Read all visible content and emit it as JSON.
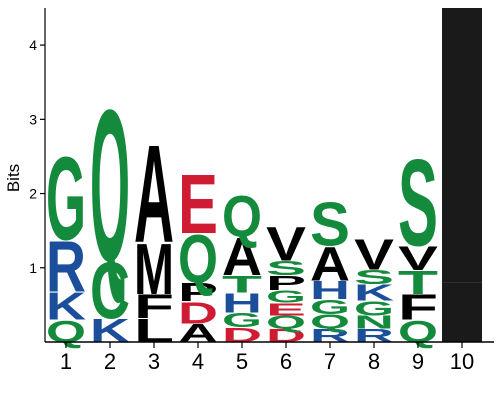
{
  "chart_data": {
    "type": "sequence-logo",
    "title": "",
    "xlabel": "",
    "ylabel": "Bits",
    "ylim": [
      0,
      4.5
    ],
    "yticks": [
      1,
      2,
      3,
      4
    ],
    "positions": [
      {
        "label": "1",
        "stack": [
          {
            "letter": "Q",
            "height": 0.3
          },
          {
            "letter": "K",
            "height": 0.38
          },
          {
            "letter": "R",
            "height": 0.7
          },
          {
            "letter": "G",
            "height": 1.15
          }
        ]
      },
      {
        "label": "2",
        "stack": [
          {
            "letter": "K",
            "height": 0.32
          },
          {
            "letter": "C",
            "height": 0.78
          },
          {
            "letter": "Q",
            "height": 2.1
          }
        ]
      },
      {
        "label": "3",
        "stack": [
          {
            "letter": "L",
            "height": 0.32
          },
          {
            "letter": "F",
            "height": 0.33
          },
          {
            "letter": "M",
            "height": 0.7
          },
          {
            "letter": "A",
            "height": 1.35
          }
        ]
      },
      {
        "label": "4",
        "stack": [
          {
            "letter": "A",
            "height": 0.25
          },
          {
            "letter": "D",
            "height": 0.3
          },
          {
            "letter": "P",
            "height": 0.25
          },
          {
            "letter": "Q",
            "height": 0.67
          },
          {
            "letter": "E",
            "height": 0.82
          }
        ]
      },
      {
        "label": "5",
        "stack": [
          {
            "letter": "D",
            "height": 0.2
          },
          {
            "letter": "G",
            "height": 0.2
          },
          {
            "letter": "H",
            "height": 0.27
          },
          {
            "letter": "T",
            "height": 0.23
          },
          {
            "letter": "A",
            "height": 0.52
          },
          {
            "letter": "Q",
            "height": 0.57
          }
        ]
      },
      {
        "label": "6",
        "stack": [
          {
            "letter": "D",
            "height": 0.18
          },
          {
            "letter": "Q",
            "height": 0.18
          },
          {
            "letter": "E",
            "height": 0.17
          },
          {
            "letter": "G",
            "height": 0.17
          },
          {
            "letter": "P",
            "height": 0.2
          },
          {
            "letter": "S",
            "height": 0.2
          },
          {
            "letter": "V",
            "height": 0.47
          }
        ]
      },
      {
        "label": "7",
        "stack": [
          {
            "letter": "R",
            "height": 0.18
          },
          {
            "letter": "Q",
            "height": 0.2
          },
          {
            "letter": "G",
            "height": 0.2
          },
          {
            "letter": "H",
            "height": 0.25
          },
          {
            "letter": "A",
            "height": 0.47
          },
          {
            "letter": "S",
            "height": 0.6
          }
        ]
      },
      {
        "label": "8",
        "stack": [
          {
            "letter": "R",
            "height": 0.18
          },
          {
            "letter": "N",
            "height": 0.18
          },
          {
            "letter": "G",
            "height": 0.2
          },
          {
            "letter": "K",
            "height": 0.22
          },
          {
            "letter": "S",
            "height": 0.2
          },
          {
            "letter": "V",
            "height": 0.42
          }
        ]
      },
      {
        "label": "9",
        "stack": [
          {
            "letter": "Q",
            "height": 0.3
          },
          {
            "letter": "F",
            "height": 0.35
          },
          {
            "letter": "T",
            "height": 0.32
          },
          {
            "letter": "V",
            "height": 0.33
          },
          {
            "letter": "S",
            "height": 1.2
          }
        ]
      },
      {
        "label": "10",
        "stack": [
          {
            "letter": "",
            "height": 0.8
          },
          {
            "letter": "",
            "height": 3.7
          }
        ]
      }
    ],
    "colors": {
      "A": "#000000",
      "C": "#148A3C",
      "D": "#D01C32",
      "E": "#D01C32",
      "F": "#000000",
      "G": "#148A3C",
      "H": "#1B4F9C",
      "I": "#000000",
      "K": "#1B4F9C",
      "L": "#000000",
      "M": "#000000",
      "N": "#148A3C",
      "P": "#000000",
      "Q": "#148A3C",
      "R": "#1B4F9C",
      "S": "#148A3C",
      "T": "#148A3C",
      "V": "#000000",
      "W": "#000000",
      "Y": "#148A3C",
      "": "#1A1A1A"
    }
  }
}
